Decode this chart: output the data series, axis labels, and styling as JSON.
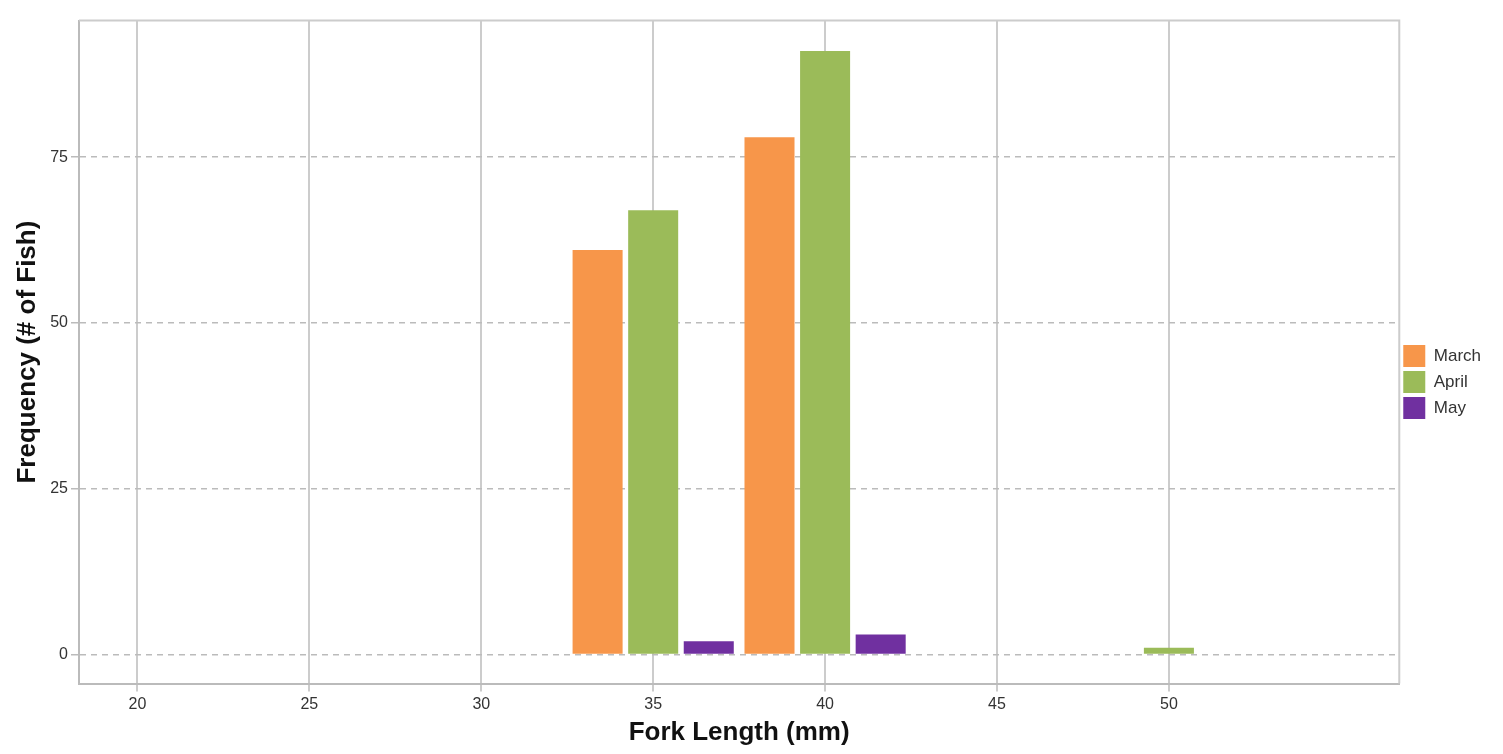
{
  "chart_data": {
    "type": "bar",
    "xlabel": "Fork Length (mm)",
    "ylabel": "Frequency (# of Fish)",
    "x": [
      35,
      40,
      50
    ],
    "series": [
      {
        "name": "March",
        "color": "#f7964a",
        "values": [
          61,
          78,
          null
        ]
      },
      {
        "name": "April",
        "color": "#9bbb59",
        "values": [
          67,
          91,
          1
        ]
      },
      {
        "name": "May",
        "color": "#7030a0",
        "values": [
          2,
          3,
          null
        ]
      }
    ],
    "xlim": [
      18.3,
      56.7
    ],
    "xticks": [
      20,
      25,
      30,
      35,
      40,
      45,
      50
    ],
    "ylim": [
      -4.4,
      95.6
    ],
    "yticks": [
      0,
      25,
      50,
      75
    ],
    "grid": true,
    "legend": "right"
  }
}
